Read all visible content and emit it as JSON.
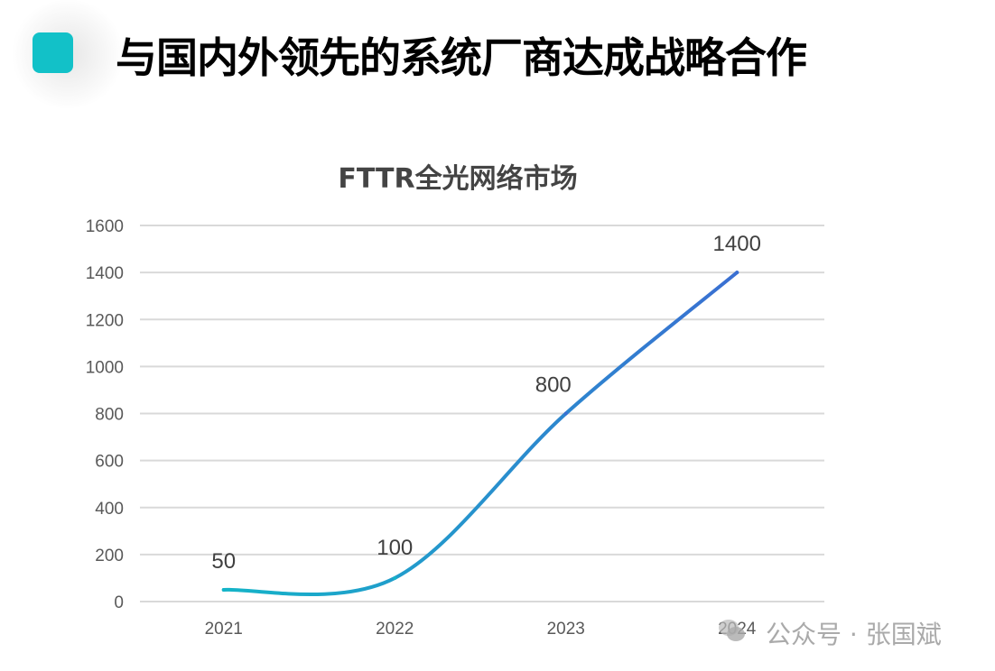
{
  "slide": {
    "title": "与国内外领先的系统厂商达成战略合作",
    "accent_color": "#12c1c8"
  },
  "watermark": {
    "text": "公众号 · 张国斌",
    "icon": "wechat-bubble-icon"
  },
  "chart_data": {
    "type": "line",
    "title": "FTTR全光网络市场",
    "categories": [
      "2021",
      "2022",
      "2023",
      "2024"
    ],
    "series": [
      {
        "name": "FTTR全光网络市场",
        "values": [
          50,
          100,
          800,
          1400
        ]
      }
    ],
    "data_labels": [
      "50",
      "100",
      "800",
      "1400"
    ],
    "yticks": [
      "0",
      "200",
      "400",
      "600",
      "800",
      "1000",
      "1200",
      "1400",
      "1600"
    ],
    "ylim": [
      0,
      1600
    ],
    "xlabel": "",
    "ylabel": "",
    "grid": true,
    "legend": "none",
    "line_colors": [
      "#14b4c8",
      "#3a6fd2"
    ]
  }
}
